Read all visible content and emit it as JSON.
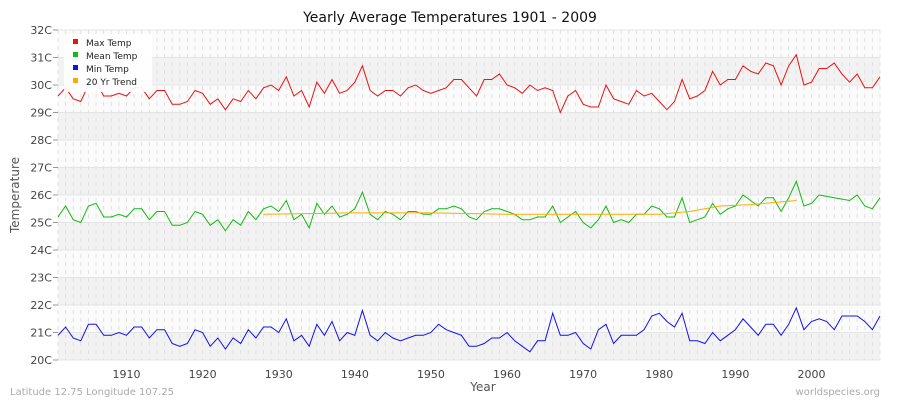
{
  "chart_data": {
    "type": "line",
    "title": "Yearly Average Temperatures 1901 - 2009",
    "xlabel": "Year",
    "ylabel": "Temperature",
    "xlim": [
      1901,
      2009
    ],
    "ylim": [
      20,
      32
    ],
    "x_ticks": [
      1910,
      1920,
      1930,
      1940,
      1950,
      1960,
      1970,
      1980,
      1990,
      2000
    ],
    "y_ticks": [
      "20C",
      "21C",
      "22C",
      "23C",
      "24C",
      "25C",
      "26C",
      "27C",
      "28C",
      "29C",
      "30C",
      "31C",
      "32C"
    ],
    "grid": true,
    "legend_placement": "top-left",
    "x_start": 1901,
    "series": [
      {
        "name": "Max Temp",
        "color": "#ee1111",
        "values": [
          29.6,
          29.9,
          29.5,
          29.4,
          30.0,
          30.1,
          29.6,
          29.6,
          29.7,
          29.6,
          29.9,
          29.9,
          29.5,
          29.8,
          29.8,
          29.3,
          29.3,
          29.4,
          29.8,
          29.7,
          29.3,
          29.5,
          29.1,
          29.5,
          29.4,
          29.8,
          29.5,
          29.9,
          30.0,
          29.8,
          30.3,
          29.6,
          29.8,
          29.2,
          30.1,
          29.7,
          30.2,
          29.7,
          29.8,
          30.1,
          30.7,
          29.8,
          29.6,
          29.8,
          29.8,
          29.6,
          29.9,
          30.0,
          29.8,
          29.7,
          29.8,
          29.9,
          30.2,
          30.2,
          29.9,
          29.6,
          30.2,
          30.2,
          30.4,
          30.0,
          29.9,
          29.7,
          30.0,
          29.8,
          29.9,
          29.8,
          29.0,
          29.6,
          29.8,
          29.3,
          29.2,
          29.2,
          30.0,
          29.5,
          29.4,
          29.3,
          29.8,
          29.6,
          29.7,
          29.4,
          29.1,
          29.4,
          30.2,
          29.5,
          29.6,
          29.8,
          30.5,
          30.0,
          30.2,
          30.2,
          30.7,
          30.5,
          30.4,
          30.8,
          30.7,
          30.0,
          30.7,
          31.1,
          30.0,
          30.1,
          30.6,
          30.6,
          30.8,
          30.4,
          30.1,
          30.4,
          29.9,
          29.9,
          30.3
        ]
      },
      {
        "name": "Mean Temp",
        "color": "#11bb11",
        "values": [
          25.2,
          25.6,
          25.1,
          25.0,
          25.6,
          25.7,
          25.2,
          25.2,
          25.3,
          25.2,
          25.5,
          25.5,
          25.1,
          25.4,
          25.4,
          24.9,
          24.9,
          25.0,
          25.4,
          25.3,
          24.9,
          25.1,
          24.7,
          25.1,
          24.9,
          25.4,
          25.1,
          25.5,
          25.6,
          25.4,
          25.8,
          25.1,
          25.3,
          24.8,
          25.7,
          25.3,
          25.6,
          25.2,
          25.3,
          25.5,
          26.1,
          25.3,
          25.1,
          25.4,
          25.3,
          25.1,
          25.4,
          25.4,
          25.3,
          25.3,
          25.5,
          25.5,
          25.6,
          25.5,
          25.2,
          25.1,
          25.4,
          25.5,
          25.5,
          25.4,
          25.3,
          25.1,
          25.1,
          25.2,
          25.2,
          25.6,
          25.0,
          25.2,
          25.4,
          25.0,
          24.8,
          25.1,
          25.6,
          25.0,
          25.1,
          25.0,
          25.3,
          25.3,
          25.6,
          25.5,
          25.2,
          25.2,
          25.9,
          25.0,
          25.1,
          25.2,
          25.7,
          25.3,
          25.5,
          25.6,
          26.0,
          25.8,
          25.6,
          25.9,
          25.9,
          25.4,
          25.9,
          26.5,
          25.6,
          25.7,
          26.0,
          25.95,
          25.9,
          25.85,
          25.8,
          26.0,
          25.6,
          25.5,
          25.9
        ]
      },
      {
        "name": "Min Temp",
        "color": "#1111ee",
        "values": [
          20.9,
          21.2,
          20.8,
          20.7,
          21.3,
          21.3,
          20.9,
          20.9,
          21.0,
          20.9,
          21.2,
          21.2,
          20.8,
          21.1,
          21.1,
          20.6,
          20.5,
          20.6,
          21.1,
          21.0,
          20.5,
          20.8,
          20.4,
          20.8,
          20.6,
          21.1,
          20.8,
          21.2,
          21.2,
          21.0,
          21.5,
          20.7,
          20.9,
          20.5,
          21.3,
          20.9,
          21.4,
          20.7,
          21.0,
          20.9,
          21.8,
          20.9,
          20.7,
          21.0,
          20.8,
          20.7,
          20.8,
          20.9,
          20.9,
          21.0,
          21.3,
          21.1,
          21.0,
          20.9,
          20.5,
          20.5,
          20.6,
          20.8,
          20.8,
          21.0,
          20.7,
          20.5,
          20.3,
          20.7,
          20.7,
          21.7,
          20.9,
          20.9,
          21.0,
          20.6,
          20.4,
          21.1,
          21.3,
          20.6,
          20.9,
          20.9,
          20.9,
          21.1,
          21.6,
          21.7,
          21.4,
          21.2,
          21.7,
          20.7,
          20.7,
          20.6,
          21.0,
          20.7,
          20.9,
          21.1,
          21.5,
          21.2,
          20.9,
          21.3,
          21.3,
          20.9,
          21.3,
          21.9,
          21.1,
          21.4,
          21.5,
          21.4,
          21.1,
          21.6,
          21.6,
          21.6,
          21.4,
          21.1,
          21.6
        ]
      },
      {
        "name": "20 Yr Trend",
        "color": "#ffaa00",
        "x": [
          1928,
          1940,
          1950,
          1960,
          1970,
          1980,
          1984,
          1988,
          1992,
          1998
        ],
        "values": [
          25.3,
          25.35,
          25.35,
          25.3,
          25.3,
          25.3,
          25.4,
          25.6,
          25.65,
          25.8
        ]
      }
    ]
  },
  "footer": {
    "location": "Latitude 12.75 Longitude 107.25",
    "source": "worldspecies.org"
  }
}
